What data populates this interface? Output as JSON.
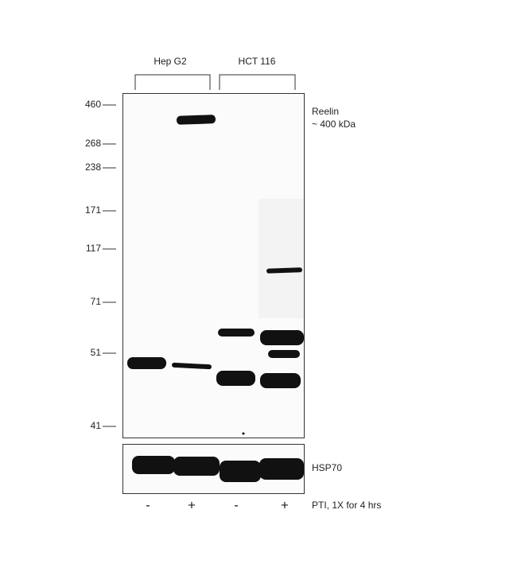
{
  "header": {
    "groups": [
      "Hep G2",
      "HCT 116"
    ]
  },
  "markers": [
    "460",
    "268",
    "238",
    "171",
    "117",
    "71",
    "51",
    "41"
  ],
  "annotations": {
    "target": "Reelin",
    "size": "~ 400 kDa",
    "control": "HSP70"
  },
  "lanes": {
    "signs": [
      "-",
      "+",
      "-",
      "+"
    ],
    "treatment": "PTI, 1X for 4 hrs"
  }
}
